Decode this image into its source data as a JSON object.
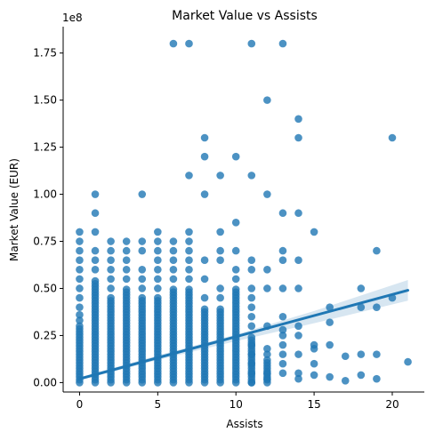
{
  "chart_data": {
    "type": "scatter",
    "title": "Market Value vs Assists",
    "xlabel": "Assists",
    "ylabel": "Market Value (EUR)",
    "y_offset_text": "1e8",
    "xlim": [
      -1.05,
      22.05
    ],
    "ylim": [
      -5000000,
      189000000
    ],
    "x_ticks": [
      0,
      5,
      10,
      15,
      20
    ],
    "x_tick_labels": [
      "0",
      "5",
      "10",
      "15",
      "20"
    ],
    "y_ticks": [
      0,
      25000000,
      50000000,
      75000000,
      100000000,
      125000000,
      150000000,
      175000000
    ],
    "y_tick_labels": [
      "0.00",
      "0.25",
      "0.50",
      "0.75",
      "1.00",
      "1.25",
      "1.50",
      "1.75"
    ],
    "point_color": "#1f77b4",
    "regression": {
      "x_start": 0,
      "y_start": 2000000,
      "x_end": 21,
      "y_end": 49000000,
      "ci": [
        {
          "x": 0,
          "lo": 1200000,
          "hi": 2800000
        },
        {
          "x": 5,
          "lo": 12000000,
          "hi": 14400000
        },
        {
          "x": 10,
          "lo": 22000000,
          "hi": 25500000
        },
        {
          "x": 15,
          "lo": 31500000,
          "hi": 38000000
        },
        {
          "x": 21,
          "lo": 43500000,
          "hi": 54500000
        }
      ]
    },
    "columns": [
      {
        "x": 0,
        "top": 30000000
      },
      {
        "x": 1,
        "top": 55000000
      },
      {
        "x": 2,
        "top": 45000000
      },
      {
        "x": 3,
        "top": 50000000
      },
      {
        "x": 4,
        "top": 45000000
      },
      {
        "x": 5,
        "top": 45000000
      },
      {
        "x": 6,
        "top": 50000000
      },
      {
        "x": 7,
        "top": 50000000
      },
      {
        "x": 8,
        "top": 40000000
      },
      {
        "x": 9,
        "top": 40000000
      },
      {
        "x": 10,
        "top": 50000000
      },
      {
        "x": 11,
        "top": 25000000
      },
      {
        "x": 12,
        "top": 12000000
      }
    ],
    "points": [
      [
        0,
        80000000
      ],
      [
        0,
        75000000
      ],
      [
        0,
        70000000
      ],
      [
        0,
        65000000
      ],
      [
        0,
        60000000
      ],
      [
        0,
        55000000
      ],
      [
        0,
        50000000
      ],
      [
        0,
        45000000
      ],
      [
        0,
        40000000
      ],
      [
        0,
        36000000
      ],
      [
        0,
        33000000
      ],
      [
        1,
        100000000
      ],
      [
        1,
        90000000
      ],
      [
        1,
        80000000
      ],
      [
        1,
        70000000
      ],
      [
        1,
        65000000
      ],
      [
        1,
        60000000
      ],
      [
        2,
        75000000
      ],
      [
        2,
        70000000
      ],
      [
        2,
        65000000
      ],
      [
        2,
        60000000
      ],
      [
        2,
        55000000
      ],
      [
        2,
        50000000
      ],
      [
        3,
        75000000
      ],
      [
        3,
        70000000
      ],
      [
        3,
        65000000
      ],
      [
        3,
        60000000
      ],
      [
        3,
        55000000
      ],
      [
        4,
        100000000
      ],
      [
        4,
        75000000
      ],
      [
        4,
        70000000
      ],
      [
        4,
        60000000
      ],
      [
        4,
        55000000
      ],
      [
        4,
        50000000
      ],
      [
        5,
        80000000
      ],
      [
        5,
        75000000
      ],
      [
        5,
        70000000
      ],
      [
        5,
        65000000
      ],
      [
        5,
        60000000
      ],
      [
        5,
        55000000
      ],
      [
        5,
        50000000
      ],
      [
        6,
        180000000
      ],
      [
        6,
        75000000
      ],
      [
        6,
        70000000
      ],
      [
        6,
        65000000
      ],
      [
        6,
        60000000
      ],
      [
        6,
        55000000
      ],
      [
        7,
        180000000
      ],
      [
        7,
        110000000
      ],
      [
        7,
        80000000
      ],
      [
        7,
        75000000
      ],
      [
        7,
        70000000
      ],
      [
        7,
        65000000
      ],
      [
        7,
        60000000
      ],
      [
        7,
        55000000
      ],
      [
        8,
        130000000
      ],
      [
        8,
        120000000
      ],
      [
        8,
        100000000
      ],
      [
        8,
        65000000
      ],
      [
        8,
        55000000
      ],
      [
        8,
        45000000
      ],
      [
        9,
        110000000
      ],
      [
        9,
        80000000
      ],
      [
        9,
        70000000
      ],
      [
        9,
        65000000
      ],
      [
        9,
        50000000
      ],
      [
        9,
        45000000
      ],
      [
        10,
        120000000
      ],
      [
        10,
        85000000
      ],
      [
        10,
        70000000
      ],
      [
        10,
        60000000
      ],
      [
        10,
        55000000
      ],
      [
        11,
        180000000
      ],
      [
        11,
        110000000
      ],
      [
        11,
        65000000
      ],
      [
        11,
        60000000
      ],
      [
        11,
        50000000
      ],
      [
        11,
        45000000
      ],
      [
        11,
        40000000
      ],
      [
        11,
        35000000
      ],
      [
        11,
        30000000
      ],
      [
        11,
        20000000
      ],
      [
        11,
        15000000
      ],
      [
        11,
        10000000
      ],
      [
        11,
        5000000
      ],
      [
        11,
        0
      ],
      [
        12,
        150000000
      ],
      [
        12,
        100000000
      ],
      [
        12,
        60000000
      ],
      [
        12,
        50000000
      ],
      [
        12,
        30000000
      ],
      [
        12,
        18000000
      ],
      [
        12,
        15000000
      ],
      [
        12,
        5000000
      ],
      [
        12,
        2000000
      ],
      [
        13,
        180000000
      ],
      [
        13,
        90000000
      ],
      [
        13,
        70000000
      ],
      [
        13,
        65000000
      ],
      [
        13,
        50000000
      ],
      [
        13,
        35000000
      ],
      [
        13,
        28000000
      ],
      [
        13,
        25000000
      ],
      [
        13,
        20000000
      ],
      [
        13,
        15000000
      ],
      [
        13,
        10000000
      ],
      [
        13,
        5000000
      ],
      [
        14,
        140000000
      ],
      [
        14,
        130000000
      ],
      [
        14,
        90000000
      ],
      [
        14,
        65000000
      ],
      [
        14,
        50000000
      ],
      [
        14,
        30000000
      ],
      [
        14,
        25000000
      ],
      [
        14,
        15000000
      ],
      [
        14,
        5000000
      ],
      [
        14,
        2000000
      ],
      [
        15,
        80000000
      ],
      [
        15,
        20000000
      ],
      [
        15,
        18000000
      ],
      [
        15,
        10000000
      ],
      [
        15,
        4000000
      ],
      [
        16,
        40000000
      ],
      [
        16,
        32000000
      ],
      [
        16,
        20000000
      ],
      [
        16,
        3000000
      ],
      [
        17,
        14000000
      ],
      [
        17,
        1000000
      ],
      [
        18,
        50000000
      ],
      [
        18,
        40000000
      ],
      [
        18,
        15000000
      ],
      [
        18,
        4000000
      ],
      [
        19,
        70000000
      ],
      [
        19,
        40000000
      ],
      [
        19,
        15000000
      ],
      [
        19,
        2000000
      ],
      [
        20,
        130000000
      ],
      [
        20,
        45000000
      ],
      [
        21,
        11000000
      ]
    ]
  }
}
